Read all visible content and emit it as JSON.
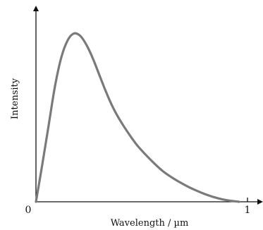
{
  "chart_data": {
    "type": "line",
    "title": "",
    "xlabel": "Wavelength / µm",
    "ylabel": "Intensity",
    "xlim": [
      0,
      1.0
    ],
    "ylim": [
      0,
      1.0
    ],
    "x_tick_labels": [
      "0",
      "1"
    ],
    "grid": false,
    "legend": "none",
    "curve_color": "#7a7a7a",
    "axis_color": "#111111",
    "series": [
      {
        "x": [
          0.0,
          0.03,
          0.06,
          0.09,
          0.12,
          0.15,
          0.18,
          0.21,
          0.24,
          0.27,
          0.3,
          0.33,
          0.36,
          0.39,
          0.42,
          0.45,
          0.48,
          0.52,
          0.56,
          0.6,
          0.64,
          0.68,
          0.72,
          0.76,
          0.8,
          0.84,
          0.88,
          0.92,
          0.96
        ],
        "y": [
          0.0,
          0.22,
          0.45,
          0.68,
          0.85,
          0.95,
          0.99,
          0.975,
          0.92,
          0.84,
          0.745,
          0.65,
          0.565,
          0.495,
          0.435,
          0.38,
          0.33,
          0.275,
          0.225,
          0.18,
          0.145,
          0.115,
          0.088,
          0.065,
          0.045,
          0.028,
          0.015,
          0.006,
          0.0
        ]
      }
    ]
  }
}
